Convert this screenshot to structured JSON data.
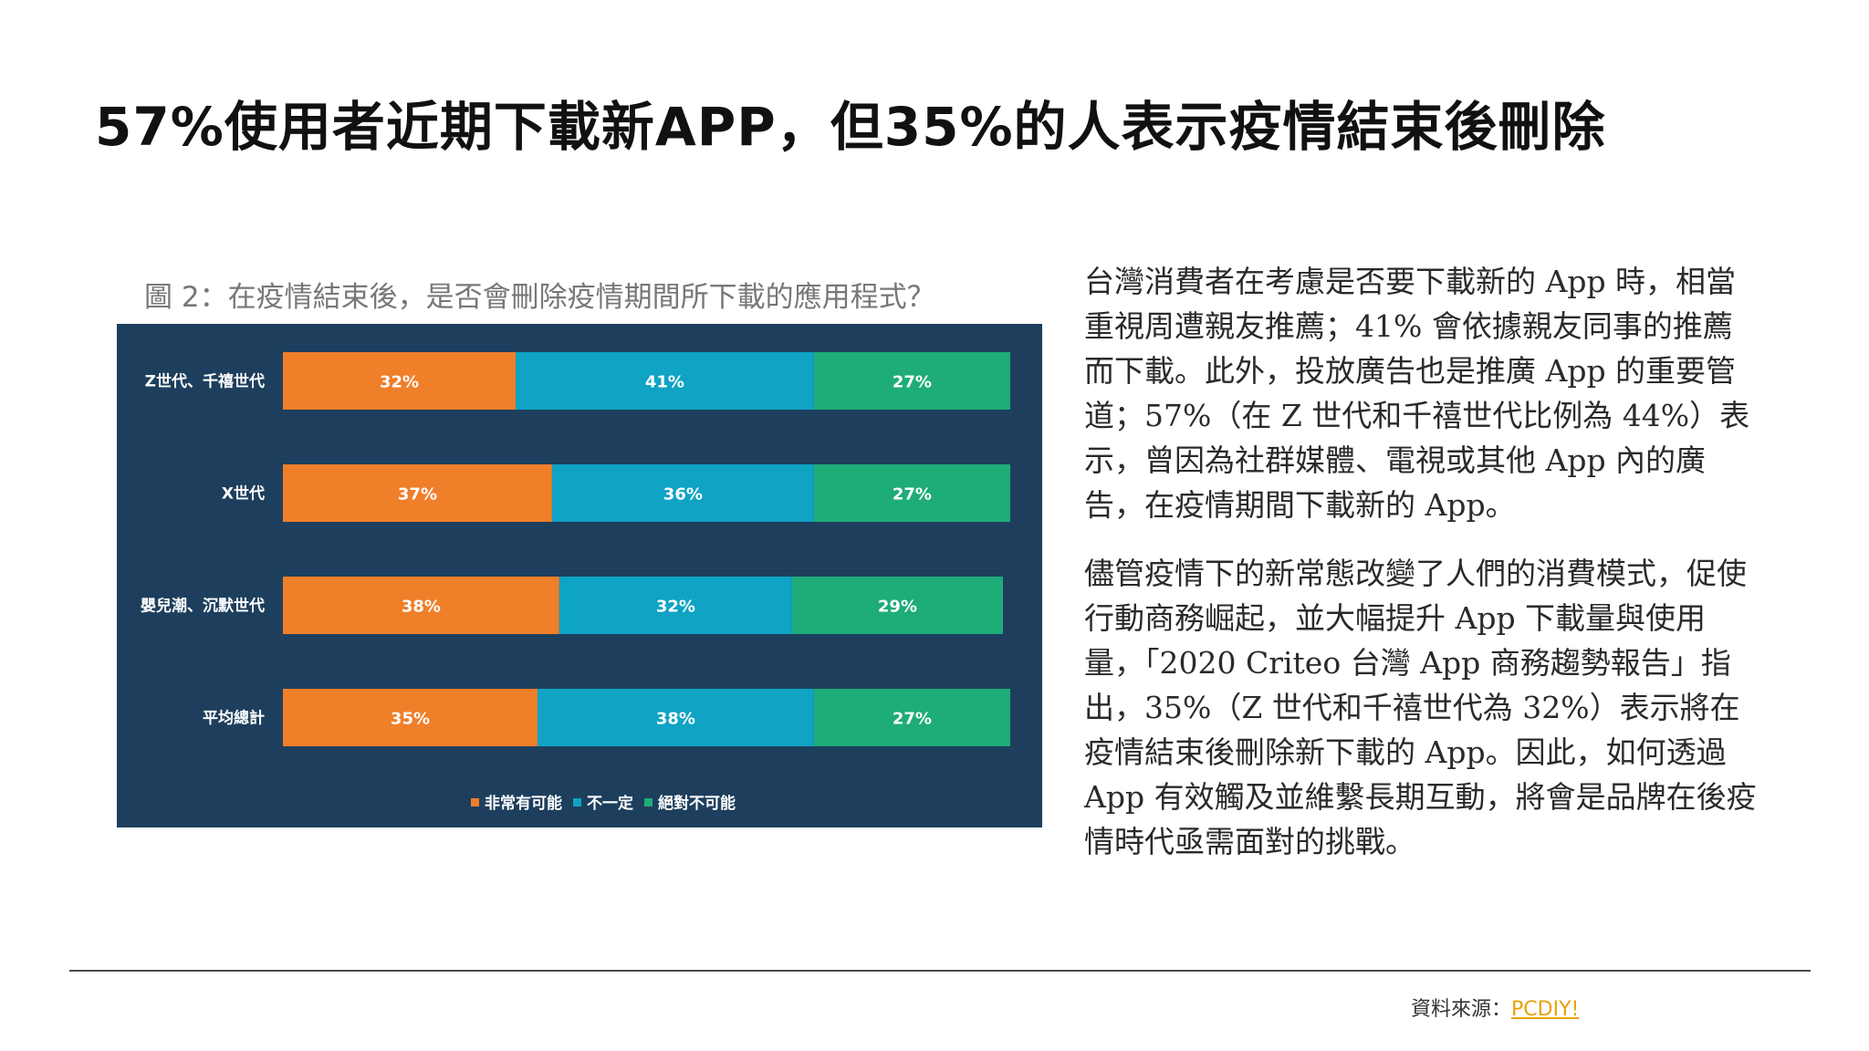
{
  "title": "57%使用者近期下載新APP，但35%的人表示疫情結束後刪除",
  "chart_data": {
    "type": "bar",
    "orientation": "horizontal",
    "stacked": true,
    "title": "圖 2：在疫情結束後，是否會刪除疫情期間所下載的應用程式？",
    "categories": [
      "Z世代、千禧世代",
      "X世代",
      "嬰兒潮、沉默世代",
      "平均總計"
    ],
    "series": [
      {
        "name": "非常有可能",
        "color": "#f07f2a",
        "values": [
          32,
          37,
          38,
          35
        ]
      },
      {
        "name": "不一定",
        "color": "#0fa3c4",
        "values": [
          41,
          36,
          32,
          38
        ]
      },
      {
        "name": "絕對不可能",
        "color": "#1eac78",
        "values": [
          27,
          27,
          29,
          27
        ]
      }
    ],
    "value_suffix": "%",
    "xlim": [
      0,
      100
    ],
    "legend_position": "bottom"
  },
  "body": {
    "paragraphs": [
      "台灣消費者在考慮是否要下載新的 App 時，相當重視周遭親友推薦；41% 會依據親友同事的推薦而下載。此外，投放廣告也是推廣 App 的重要管道；57%（在 Z 世代和千禧世代比例為 44%）表示，曾因為社群媒體、電視或其他 App 內的廣告，在疫情期間下載新的 App。",
      "儘管疫情下的新常態改變了人們的消費模式，促使行動商務崛起，並大幅提升 App 下載量與使用量，「2020 Criteo 台灣 App 商務趨勢報告」指出，35%（Z 世代和千禧世代為 32%）表示將在疫情結束後刪除新下載的 App。因此，如何透過 App 有效觸及並維繫長期互動，將會是品牌在後疫情時代亟需面對的挑戰。"
    ]
  },
  "source": {
    "label": "資料來源：",
    "link_text": "PCDIY!"
  }
}
